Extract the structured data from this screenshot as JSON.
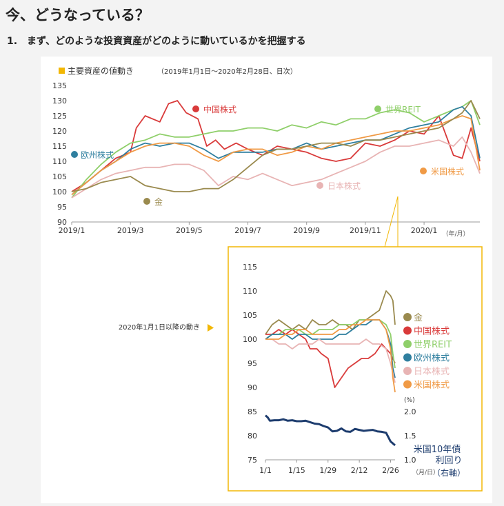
{
  "page": {
    "title": "今、どうなっている？",
    "subtitle": "1.　まず、どのような投資資産がどのように動いているかを把握する"
  },
  "colors": {
    "gold": "#9a8a4e",
    "china": "#d93a3a",
    "reit": "#8fcf6a",
    "europe": "#2f7f9f",
    "japan": "#e8b4b4",
    "us": "#f09a45",
    "bond": "#1d3c6e",
    "accent": "#f2b705"
  },
  "chart_data": [
    {
      "type": "line",
      "title": "主要資産の値動き",
      "subtitle": "（2019年1月1日～2020年2月28日、日次）",
      "x_tick_labels": [
        "2019/1",
        "2019/3",
        "2019/5",
        "2019/7",
        "2019/9",
        "2019/11",
        "2020/1"
      ],
      "x_unit": "（年/月）",
      "ylim": [
        90,
        135
      ],
      "y_ticks": [
        90,
        95,
        100,
        105,
        110,
        115,
        120,
        125,
        130,
        135
      ],
      "grid": false,
      "series": [
        {
          "name": "中国株式",
          "color_key": "china",
          "x": [
            0,
            0.5,
            1,
            1.5,
            2,
            2.2,
            2.5,
            3,
            3.3,
            3.6,
            3.9,
            4.3,
            4.6,
            4.9,
            5.2,
            5.6,
            6,
            6.5,
            7,
            7.5,
            8,
            8.5,
            9,
            9.5,
            10,
            10.5,
            11,
            11.5,
            12,
            12.5,
            13,
            13.3,
            13.6,
            13.9
          ],
          "values": [
            100,
            103,
            107,
            111,
            113,
            121,
            125,
            123,
            129,
            130,
            126,
            124,
            115,
            117,
            114,
            116,
            114,
            112,
            115,
            114,
            113,
            111,
            110,
            111,
            116,
            115,
            117,
            120,
            119,
            125,
            112,
            111,
            121,
            110
          ]
        },
        {
          "name": "世界REIT",
          "color_key": "reit",
          "x": [
            0,
            0.5,
            1,
            1.5,
            2,
            2.5,
            3,
            3.5,
            4,
            4.5,
            5,
            5.5,
            6,
            6.5,
            7,
            7.5,
            8,
            8.5,
            9,
            9.5,
            10,
            10.5,
            11,
            11.5,
            12,
            12.5,
            13,
            13.3,
            13.6,
            13.9
          ],
          "values": [
            98,
            104,
            109,
            113,
            116,
            117,
            119,
            118,
            118,
            119,
            120,
            120,
            121,
            121,
            120,
            122,
            121,
            123,
            122,
            124,
            124,
            126,
            127,
            126,
            123,
            125,
            127,
            128,
            130,
            122
          ]
        },
        {
          "name": "欧州株式",
          "color_key": "europe",
          "x": [
            0,
            0.5,
            1,
            1.5,
            2,
            2.5,
            3,
            3.5,
            4,
            4.5,
            5,
            5.5,
            6,
            6.5,
            7,
            7.5,
            8,
            8.5,
            9,
            9.5,
            10,
            10.5,
            11,
            11.5,
            12,
            12.5,
            13,
            13.3,
            13.6,
            13.9
          ],
          "values": [
            99,
            103,
            107,
            110,
            114,
            116,
            115,
            116,
            116,
            114,
            111,
            113,
            113,
            113,
            114,
            114,
            116,
            114,
            115,
            116,
            117,
            117,
            119,
            121,
            122,
            123,
            127,
            128,
            125,
            111
          ]
        },
        {
          "name": "日本株式",
          "color_key": "japan",
          "x": [
            0,
            0.5,
            1,
            1.5,
            2,
            2.5,
            3,
            3.5,
            4,
            4.5,
            5,
            5.5,
            6,
            6.5,
            7,
            7.5,
            8,
            8.5,
            9,
            9.5,
            10,
            10.5,
            11,
            11.5,
            12,
            12.5,
            13,
            13.3,
            13.6,
            13.9
          ],
          "values": [
            98,
            101,
            104,
            106,
            107,
            108,
            108,
            109,
            109,
            107,
            102,
            105,
            104,
            106,
            104,
            102,
            103,
            104,
            106,
            108,
            110,
            113,
            115,
            115,
            116,
            117,
            115,
            118,
            113,
            106
          ]
        },
        {
          "name": "米国株式",
          "color_key": "us",
          "x": [
            0,
            0.5,
            1,
            1.5,
            2,
            2.5,
            3,
            3.5,
            4,
            4.5,
            5,
            5.5,
            6,
            6.5,
            7,
            7.5,
            8,
            8.5,
            9,
            9.5,
            10,
            10.5,
            11,
            11.5,
            12,
            12.5,
            13,
            13.3,
            13.6,
            13.9
          ],
          "values": [
            99,
            103,
            107,
            110,
            113,
            115,
            116,
            116,
            115,
            112,
            110,
            113,
            114,
            114,
            112,
            113,
            115,
            114,
            116,
            117,
            118,
            119,
            120,
            120,
            121,
            122,
            124,
            125,
            124,
            107
          ]
        },
        {
          "name": "金",
          "color_key": "gold",
          "x": [
            0,
            0.5,
            1,
            1.5,
            2,
            2.5,
            3,
            3.5,
            4,
            4.5,
            5,
            5.5,
            6,
            6.5,
            7,
            7.5,
            8,
            8.5,
            9,
            9.5,
            10,
            10.5,
            11,
            11.5,
            12,
            12.5,
            13,
            13.3,
            13.6,
            13.9
          ],
          "values": [
            100,
            101,
            103,
            104,
            105,
            102,
            101,
            100,
            100,
            101,
            101,
            104,
            108,
            112,
            114,
            114,
            115,
            116,
            116,
            115,
            117,
            117,
            118,
            119,
            120,
            121,
            124,
            126,
            130,
            124
          ]
        }
      ],
      "labels": [
        "中国株式",
        "世界REIT",
        "欧州株式",
        "日本株式",
        "米国株式",
        "金"
      ]
    },
    {
      "type": "line",
      "title": "2020年1月1日以降の動き",
      "x_tick_labels": [
        "1/1",
        "1/15",
        "1/29",
        "2/12",
        "2/26"
      ],
      "x_unit": "（月/日）",
      "ylim": [
        75,
        115
      ],
      "y_ticks": [
        75,
        80,
        85,
        90,
        95,
        100,
        105,
        110,
        115
      ],
      "y2_ticks": [
        "1.0",
        "1.5",
        "2.0"
      ],
      "y2_unit": "(%)",
      "y2lim": [
        1.0,
        2.0
      ],
      "grid": false,
      "series": [
        {
          "name": "金",
          "color_key": "gold",
          "x": [
            0,
            3,
            6,
            9,
            12,
            15,
            18,
            21,
            24,
            27,
            30,
            33,
            36,
            39,
            42,
            45,
            48,
            51,
            54,
            56,
            57,
            58
          ],
          "values": [
            101,
            103,
            104,
            103,
            102,
            103,
            102,
            104,
            103,
            103,
            104,
            103,
            103,
            102,
            104,
            104,
            105,
            106,
            110,
            109,
            108,
            103
          ]
        },
        {
          "name": "中国株式",
          "color_key": "china",
          "x": [
            0,
            3,
            6,
            9,
            12,
            15,
            18,
            20,
            23,
            25,
            28,
            31,
            34,
            37,
            40,
            43,
            46,
            49,
            52,
            54,
            56,
            57,
            58
          ],
          "values": [
            101,
            101,
            102,
            101,
            102,
            101,
            100,
            98,
            98,
            97,
            96,
            90,
            92,
            94,
            95,
            96,
            96,
            97,
            99,
            98,
            97,
            96,
            95
          ]
        },
        {
          "name": "世界REIT",
          "color_key": "reit",
          "x": [
            0,
            3,
            6,
            9,
            12,
            15,
            18,
            21,
            24,
            27,
            30,
            33,
            36,
            39,
            42,
            45,
            48,
            51,
            54,
            56,
            57,
            58
          ],
          "values": [
            100,
            101,
            101,
            102,
            102,
            102,
            101,
            101,
            102,
            102,
            102,
            103,
            103,
            103,
            104,
            104,
            104,
            104,
            103,
            101,
            97,
            94
          ]
        },
        {
          "name": "欧州株式",
          "color_key": "europe",
          "x": [
            0,
            3,
            6,
            9,
            12,
            15,
            18,
            21,
            24,
            27,
            30,
            33,
            36,
            39,
            42,
            45,
            48,
            51,
            54,
            56,
            57,
            58
          ],
          "values": [
            100,
            101,
            101,
            101,
            100,
            101,
            101,
            100,
            100,
            100,
            100,
            101,
            101,
            102,
            103,
            103,
            104,
            104,
            102,
            99,
            94,
            92
          ]
        },
        {
          "name": "日本株式",
          "color_key": "japan",
          "x": [
            0,
            3,
            6,
            9,
            12,
            15,
            18,
            21,
            24,
            27,
            30,
            33,
            36,
            39,
            42,
            45,
            48,
            51,
            54,
            56,
            57,
            58
          ],
          "values": [
            100,
            100,
            99,
            99,
            98,
            99,
            99,
            99,
            100,
            99,
            99,
            99,
            99,
            99,
            99,
            100,
            99,
            99,
            98,
            95,
            93,
            91
          ]
        },
        {
          "name": "米国株式",
          "color_key": "us",
          "x": [
            0,
            3,
            6,
            9,
            12,
            15,
            18,
            21,
            24,
            27,
            30,
            33,
            36,
            39,
            42,
            45,
            48,
            51,
            54,
            56,
            57,
            58
          ],
          "values": [
            100,
            100,
            100,
            101,
            101,
            102,
            102,
            101,
            101,
            101,
            101,
            102,
            102,
            103,
            103,
            104,
            104,
            104,
            102,
            98,
            92,
            89
          ]
        },
        {
          "name": "米国10年債利回り",
          "color_key": "bond",
          "axis": "right",
          "x": [
            0,
            1,
            2,
            4,
            6,
            8,
            10,
            12,
            14,
            16,
            18,
            20,
            22,
            24,
            26,
            28,
            30,
            32,
            34,
            36,
            38,
            40,
            42,
            44,
            46,
            48,
            50,
            52,
            54,
            56,
            57,
            58
          ],
          "values": [
            1.92,
            1.88,
            1.81,
            1.82,
            1.82,
            1.84,
            1.81,
            1.82,
            1.8,
            1.8,
            1.81,
            1.78,
            1.75,
            1.74,
            1.7,
            1.67,
            1.59,
            1.6,
            1.65,
            1.59,
            1.58,
            1.64,
            1.62,
            1.6,
            1.61,
            1.62,
            1.59,
            1.58,
            1.56,
            1.38,
            1.34,
            1.3
          ]
        }
      ],
      "legend": [
        "金",
        "中国株式",
        "世界REIT",
        "欧州株式",
        "日本株式",
        "米国株式"
      ],
      "bond_label": [
        "米国10年債",
        "利回り",
        "（右軸）"
      ]
    }
  ]
}
